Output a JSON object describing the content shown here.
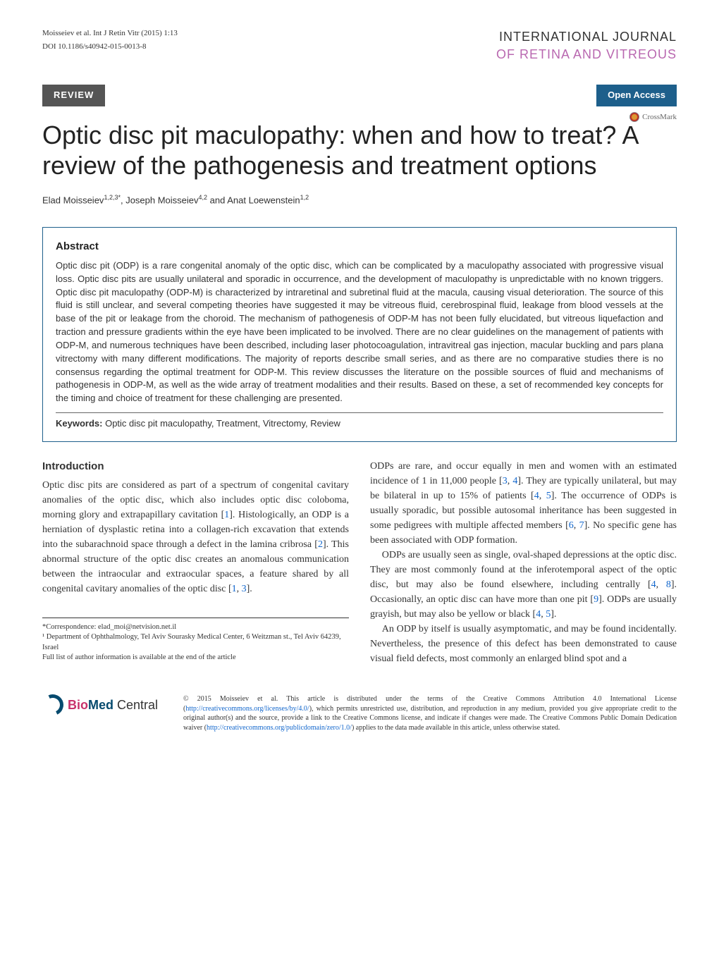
{
  "header": {
    "citation": "Moisseiev et al. Int J Retin Vitr (2015) 1:13",
    "doi": "DOI 10.1186/s40942-015-0013-8",
    "journal_line1": "INTERNATIONAL JOURNAL",
    "journal_line2": "OF RETINA AND VITREOUS"
  },
  "labels": {
    "review": "REVIEW",
    "open_access": "Open Access",
    "crossmark": "CrossMark"
  },
  "article": {
    "title": "Optic disc pit maculopathy: when and how to treat? A review of the pathogenesis and treatment options",
    "authors_html": "Elad Moisseiev<sup>1,2,3*</sup>, Joseph Moisseiev<sup>4,2</sup> and Anat Loewenstein<sup>1,2</sup>"
  },
  "abstract": {
    "heading": "Abstract",
    "text": "Optic disc pit (ODP) is a rare congenital anomaly of the optic disc, which can be complicated by a maculopathy associated with progressive visual loss. Optic disc pits are usually unilateral and sporadic in occurrence, and the development of maculopathy is unpredictable with no known triggers. Optic disc pit maculopathy (ODP-M) is characterized by intraretinal and subretinal fluid at the macula, causing visual deterioration. The source of this fluid is still unclear, and several competing theories have suggested it may be vitreous fluid, cerebrospinal fluid, leakage from blood vessels at the base of the pit or leakage from the choroid. The mechanism of pathogenesis of ODP-M has not been fully elucidated, but vitreous liquefaction and traction and pressure gradients within the eye have been implicated to be involved. There are no clear guidelines on the management of patients with ODP-M, and numerous techniques have been described, including laser photocoagulation, intravitreal gas injection, macular buckling and pars plana vitrectomy with many different modifications. The majority of reports describe small series, and as there are no comparative studies there is no consensus regarding the optimal treatment for ODP-M. This review discusses the literature on the possible sources of fluid and mechanisms of pathogenesis in ODP-M, as well as the wide array of treatment modalities and their results. Based on these, a set of recommended key concepts for the timing and choice of treatment for these challenging are presented.",
    "keywords_label": "Keywords:",
    "keywords": "  Optic disc pit maculopathy, Treatment, Vitrectomy, Review"
  },
  "body": {
    "intro_heading": "Introduction",
    "left_p1": "Optic disc pits are considered as part of a spectrum of congenital cavitary anomalies of the optic disc, which also includes optic disc coloboma, morning glory and extrapapillary cavitation [",
    "left_p1_r1": "1",
    "left_p1b": "]. Histologically, an ODP is a herniation of dysplastic retina into a collagen-rich excavation that extends into the subarachnoid space through a defect in the lamina cribrosa [",
    "left_p1_r2": "2",
    "left_p1c": "]. This abnormal structure of the optic disc creates an anomalous communication between the intraocular and extraocular spaces, a feature shared by all congenital cavitary anomalies of the optic disc [",
    "left_p1_r3": "1",
    "left_p1_r4": "3",
    "left_p1d": "].",
    "right_p1a": "ODPs are rare, and occur equally in men and women with an estimated incidence of 1 in 11,000 people [",
    "right_p1_r1": "3",
    "right_p1_r2": "4",
    "right_p1b": "]. They are typically unilateral, but may be bilateral in up to 15% of patients [",
    "right_p1_r3": "4",
    "right_p1_r4": "5",
    "right_p1c": "]. The occurrence of ODPs is usually sporadic, but possible autosomal inheritance has been suggested in some pedigrees with multiple affected members [",
    "right_p1_r5": "6",
    "right_p1_r6": "7",
    "right_p1d": "]. No specific gene has been associated with ODP formation.",
    "right_p2a": "ODPs are usually seen as single, oval-shaped depressions at the optic disc. They are most commonly found at the inferotemporal aspect of the optic disc, but may also be found elsewhere, including centrally [",
    "right_p2_r1": "4",
    "right_p2_r2": "8",
    "right_p2b": "]. Occasionally, an optic disc can have more than one pit [",
    "right_p2_r3": "9",
    "right_p2c": "]. ODPs are usually grayish, but may also be yellow or black [",
    "right_p2_r4": "4",
    "right_p2_r5": "5",
    "right_p2d": "].",
    "right_p3": "An ODP by itself is usually asymptomatic, and may be found incidentally. Nevertheless, the presence of this defect has been demonstrated to cause visual field defects, most commonly an enlarged blind spot and a"
  },
  "footnote": {
    "correspondence": "*Correspondence:  elad_moi@netvision.net.il",
    "affiliation": "¹ Department of Ophthalmology, Tel Aviv Sourasky Medical Center, 6 Weitzman st., Tel Aviv 64239, Israel",
    "full_list": "Full list of author information is available at the end of the article"
  },
  "footer": {
    "logo_bio": "Bio",
    "logo_med": "Med",
    "logo_central": " Central",
    "license_a": "© 2015 Moisseiev et al. This article is distributed under the terms of the Creative Commons Attribution 4.0 International License (",
    "license_link1": "http://creativecommons.org/licenses/by/4.0/",
    "license_b": "), which permits unrestricted use, distribution, and reproduction in any medium, provided you give appropriate credit to the original author(s) and the source, provide a link to the Creative Commons license, and indicate if changes were made. The Creative Commons Public Domain Dedication waiver (",
    "license_link2": "http://creativecommons.org/publicdomain/zero/1.0/",
    "license_c": ") applies to the data made available in this article, unless otherwise stated."
  }
}
